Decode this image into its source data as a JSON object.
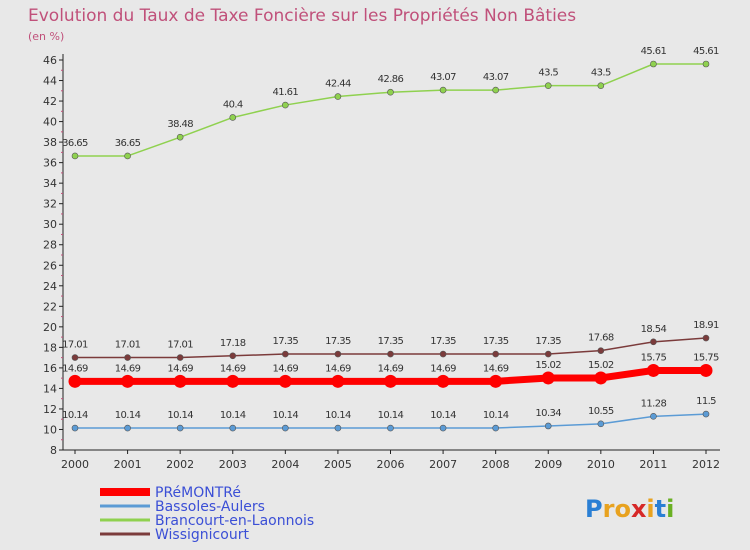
{
  "chart_data": {
    "type": "line",
    "title": "Evolution du Taux de Taxe Foncière sur les Propriétés Non Bâties",
    "subtitle": "(en %)",
    "xlabel": "",
    "ylabel": "",
    "ylim": [
      8,
      46
    ],
    "yticks": [
      8,
      10,
      12,
      14,
      16,
      18,
      20,
      22,
      24,
      26,
      28,
      30,
      32,
      34,
      36,
      38,
      40,
      42,
      44,
      46
    ],
    "x": [
      "2000",
      "2001",
      "2002",
      "2003",
      "2004",
      "2005",
      "2006",
      "2007",
      "2008",
      "2009",
      "2010",
      "2011",
      "2012"
    ],
    "grid": false,
    "legend_position": "bottom-left",
    "series": [
      {
        "name": "PRéMONTRé",
        "color": "#ff0000",
        "values": [
          14.69,
          14.69,
          14.69,
          14.69,
          14.69,
          14.69,
          14.69,
          14.69,
          14.69,
          15.02,
          15.02,
          15.75,
          15.75
        ],
        "labels": [
          "14.69",
          "14.69",
          "14.69",
          "14.69",
          "14.69",
          "14.69",
          "14.69",
          "14.69",
          "14.69",
          "15.02",
          "15.02",
          "15.75",
          "15.75"
        ]
      },
      {
        "name": "Bassoles-Aulers",
        "color": "#5b9bd5",
        "values": [
          10.14,
          10.14,
          10.14,
          10.14,
          10.14,
          10.14,
          10.14,
          10.14,
          10.14,
          10.34,
          10.55,
          11.28,
          11.5
        ],
        "labels": [
          "10.14",
          "10.14",
          "10.14",
          "10.14",
          "10.14",
          "10.14",
          "10.14",
          "10.14",
          "10.14",
          "10.34",
          "10.55",
          "11.28",
          "11.5"
        ]
      },
      {
        "name": "Brancourt-en-Laonnois",
        "color": "#8fd14f",
        "values": [
          36.65,
          36.65,
          38.48,
          40.4,
          41.61,
          42.44,
          42.86,
          43.07,
          43.07,
          43.5,
          43.5,
          45.61,
          45.61
        ],
        "labels": [
          "36.65",
          "36.65",
          "38.48",
          "40.4",
          "41.61",
          "42.44",
          "42.86",
          "43.07",
          "43.07",
          "43.5",
          "43.5",
          "45.61",
          "45.61"
        ]
      },
      {
        "name": "Wissignicourt",
        "color": "#7b3b3b",
        "values": [
          17.01,
          17.01,
          17.01,
          17.18,
          17.35,
          17.35,
          17.35,
          17.35,
          17.35,
          17.35,
          17.68,
          18.54,
          18.91
        ],
        "labels": [
          "17.01",
          "17.01",
          "17.01",
          "17.18",
          "17.35",
          "17.35",
          "17.35",
          "17.35",
          "17.35",
          "17.35",
          "17.68",
          "18.54",
          "18.91"
        ]
      }
    ]
  },
  "logo": {
    "letters": [
      "P",
      "r",
      "o",
      "x",
      "i",
      "t",
      "i"
    ],
    "colors": [
      "#2a7fd4",
      "#e8a21f",
      "#e8a21f",
      "#d62828",
      "#e8a21f",
      "#2a7fd4",
      "#6ab023"
    ]
  }
}
